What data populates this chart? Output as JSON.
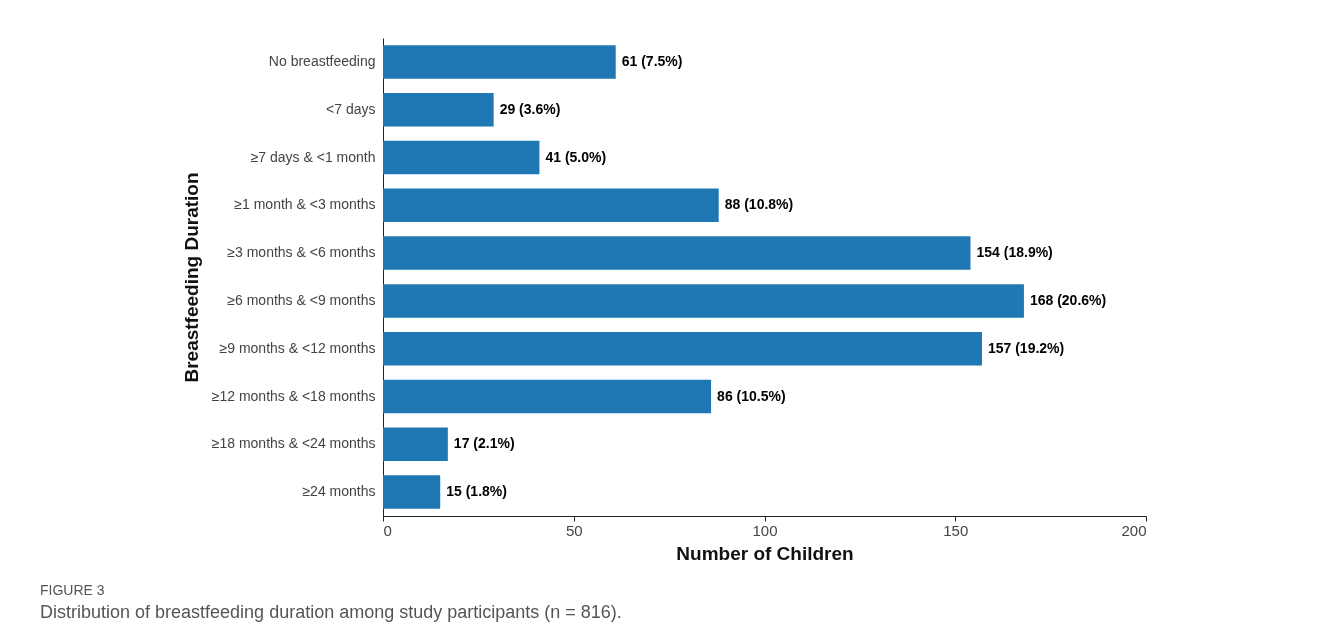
{
  "chart_data": {
    "type": "bar",
    "orientation": "horizontal",
    "xlabel": "Number of Children",
    "ylabel": "Breastfeeding Duration",
    "categories": [
      "No breastfeeding",
      "<7 days",
      "≥7 days & <1 month",
      "≥1 month & <3 months",
      "≥3 months & <6 months",
      "≥6 months & <9 months",
      "≥9 months & <12 months",
      "≥12 months & <18 months",
      "≥18 months & <24 months",
      "≥24 months"
    ],
    "values": [
      61,
      29,
      41,
      88,
      154,
      168,
      157,
      86,
      17,
      15
    ],
    "value_labels": [
      "61 (7.5%)",
      "29 (3.6%)",
      "41 (5.0%)",
      "88 (10.8%)",
      "154 (18.9%)",
      "168 (20.6%)",
      "157 (19.2%)",
      "86 (10.5%)",
      "17 (2.1%)",
      "15 (1.8%)"
    ],
    "color": "#1f77b4",
    "xlim": [
      0,
      200
    ],
    "xticks": [
      0,
      50,
      100,
      150,
      200
    ],
    "grid": false,
    "annotations": [
      "FIGURE 3",
      "Distribution of breastfeeding duration among study participants (n = 816)."
    ]
  }
}
